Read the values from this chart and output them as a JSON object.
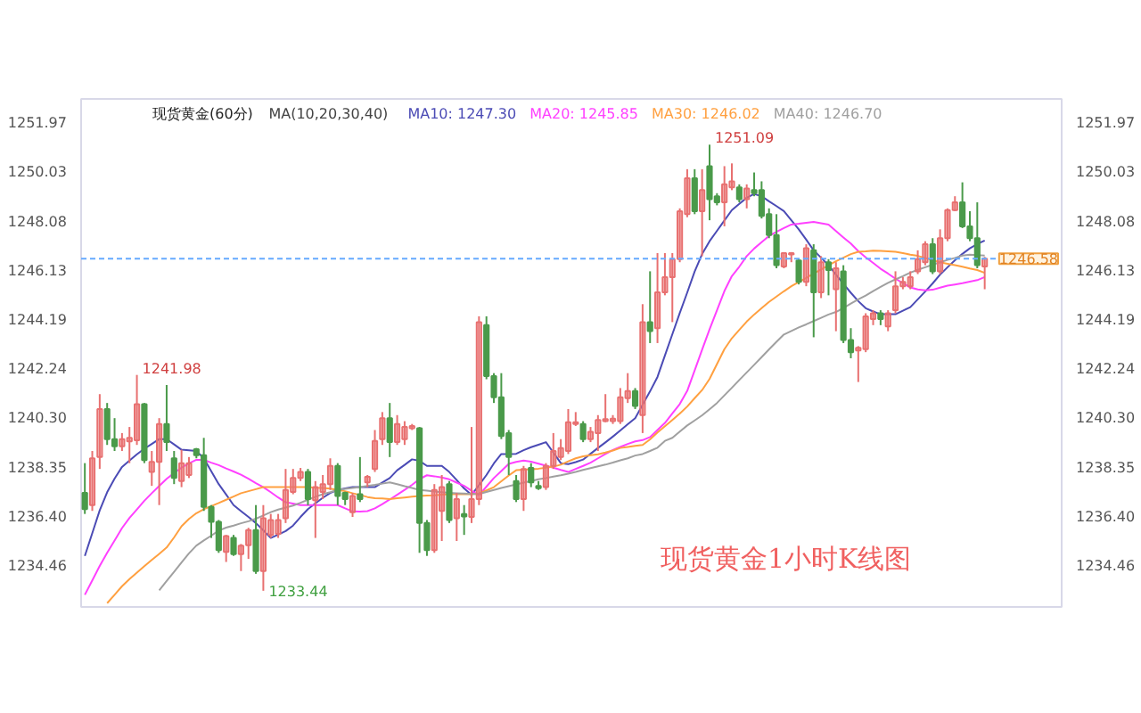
{
  "chart_data": {
    "type": "candlestick",
    "title": "现货黄金(60分)",
    "subtitle": "MA(10,20,30,40)",
    "categories": [
      null,
      null,
      null,
      null,
      null,
      null,
      null,
      null,
      null,
      null,
      null,
      null,
      null,
      null,
      null,
      null,
      null,
      null,
      null,
      null,
      null,
      null,
      null,
      null,
      null,
      null,
      null,
      null,
      null,
      null,
      null,
      null,
      null,
      null,
      null,
      null,
      null,
      null,
      null,
      null,
      null,
      null,
      null,
      null,
      null,
      null,
      null,
      null,
      null,
      null,
      null,
      null,
      null,
      null,
      null,
      null,
      null,
      null,
      null,
      null,
      null,
      null,
      null,
      null,
      null,
      null,
      null,
      null,
      null,
      null,
      null,
      null,
      null,
      null,
      null,
      null,
      null,
      null,
      null,
      null,
      null,
      null,
      null,
      null,
      null,
      null,
      null,
      null,
      null,
      null,
      null,
      null,
      null,
      null,
      null,
      null,
      null,
      null,
      null,
      null,
      null,
      null,
      null,
      null,
      null,
      null,
      null,
      null,
      null,
      null,
      null,
      null,
      null,
      null,
      null,
      null,
      null,
      null,
      null,
      null,
      null,
      null
    ],
    "ohlc": [
      [
        1237.31,
        1238.49,
        1236.48,
        1236.67
      ],
      [
        1236.83,
        1238.97,
        1236.6,
        1238.68
      ],
      [
        1238.73,
        1241.22,
        1238.26,
        1240.63
      ],
      [
        1240.63,
        1240.87,
        1239.21,
        1239.44
      ],
      [
        1239.44,
        1240.27,
        1238.97,
        1239.16
      ],
      [
        1239.16,
        1239.68,
        1238.97,
        1239.44
      ],
      [
        1239.35,
        1239.92,
        1238.49,
        1239.49
      ],
      [
        1239.39,
        1241.98,
        1239.21,
        1240.82
      ],
      [
        1240.82,
        1240.87,
        1238.49,
        1238.61
      ],
      [
        1238.14,
        1238.97,
        1237.59,
        1238.54
      ],
      [
        1238.54,
        1240.27,
        1236.83,
        1240.04
      ],
      [
        1240.04,
        1241.58,
        1238.97,
        1239.32
      ],
      [
        1238.68,
        1238.97,
        1237.66,
        1237.9
      ],
      [
        1237.78,
        1239.02,
        1237.54,
        1238.49
      ],
      [
        1238.02,
        1238.73,
        1237.9,
        1238.49
      ],
      [
        1239.04,
        1239.09,
        1238.68,
        1238.8
      ],
      [
        1238.8,
        1239.49,
        1236.6,
        1236.76
      ],
      [
        1236.76,
        1236.83,
        1235.53,
        1236.17
      ],
      [
        1236.17,
        1236.24,
        1234.94,
        1235.05
      ],
      [
        1234.98,
        1235.65,
        1234.58,
        1235.6
      ],
      [
        1235.53,
        1235.65,
        1234.82,
        1234.89
      ],
      [
        1234.89,
        1235.29,
        1234.22,
        1235.22
      ],
      [
        1235.24,
        1235.93,
        1234.7,
        1235.84
      ],
      [
        1235.84,
        1236.83,
        1234.11,
        1234.22
      ],
      [
        1234.22,
        1236.83,
        1233.44,
        1236.31
      ],
      [
        1235.65,
        1236.48,
        1235.53,
        1236.24
      ],
      [
        1235.69,
        1236.48,
        1235.53,
        1236.24
      ],
      [
        1236.31,
        1238.26,
        1236.12,
        1237.43
      ],
      [
        1237.35,
        1238.26,
        1237.26,
        1237.9
      ],
      [
        1237.9,
        1238.3,
        1237.78,
        1238.14
      ],
      [
        1238.14,
        1238.26,
        1236.83,
        1237.07
      ],
      [
        1237.02,
        1237.78,
        1235.53,
        1237.54
      ],
      [
        1237.35,
        1238.02,
        1237.07,
        1237.66
      ],
      [
        1237.66,
        1238.68,
        1237.43,
        1238.38
      ],
      [
        1238.38,
        1238.49,
        1236.83,
        1237.19
      ],
      [
        1237.31,
        1237.36,
        1236.83,
        1237.07
      ],
      [
        1236.55,
        1237.31,
        1236.36,
        1237.19
      ],
      [
        1237.26,
        1238.73,
        1236.95,
        1237.07
      ],
      [
        1237.73,
        1238.02,
        1237.54,
        1237.95
      ],
      [
        1238.26,
        1239.8,
        1238.14,
        1239.37
      ],
      [
        1239.44,
        1240.51,
        1239.21,
        1240.27
      ],
      [
        1240.27,
        1240.87,
        1238.73,
        1239.32
      ],
      [
        1239.32,
        1240.39,
        1239.21,
        1240.04
      ],
      [
        1239.44,
        1240.15,
        1239.21,
        1239.92
      ],
      [
        1239.87,
        1240.04,
        1239.8,
        1239.96
      ],
      [
        1239.87,
        1239.92,
        1234.94,
        1236.12
      ],
      [
        1236.12,
        1236.24,
        1234.82,
        1235.05
      ],
      [
        1235.05,
        1237.66,
        1234.94,
        1237.43
      ],
      [
        1236.6,
        1238.02,
        1235.41,
        1237.54
      ],
      [
        1237.66,
        1237.78,
        1236.12,
        1236.24
      ],
      [
        1236.31,
        1237.31,
        1235.41,
        1237.07
      ],
      [
        1236.48,
        1236.83,
        1235.65,
        1236.38
      ],
      [
        1236.36,
        1239.92,
        1236.12,
        1237.07
      ],
      [
        1237.07,
        1244.3,
        1236.83,
        1244.07
      ],
      [
        1243.95,
        1244.3,
        1241.81,
        1241.93
      ],
      [
        1241.93,
        1242.05,
        1240.87,
        1241.1
      ],
      [
        1241.1,
        1242.05,
        1239.44,
        1239.56
      ],
      [
        1239.68,
        1239.8,
        1238.02,
        1238.73
      ],
      [
        1237.78,
        1238.02,
        1236.95,
        1237.07
      ],
      [
        1237.07,
        1238.38,
        1236.6,
        1238.26
      ],
      [
        1238.3,
        1238.49,
        1237.54,
        1237.73
      ],
      [
        1237.59,
        1237.78,
        1237.43,
        1237.5
      ],
      [
        1237.54,
        1238.49,
        1237.43,
        1238.38
      ],
      [
        1238.38,
        1239.68,
        1238.26,
        1238.97
      ],
      [
        1238.73,
        1239.44,
        1238.61,
        1239.09
      ],
      [
        1238.97,
        1240.63,
        1238.85,
        1240.11
      ],
      [
        1240.04,
        1240.51,
        1239.96,
        1240.11
      ],
      [
        1240.04,
        1240.15,
        1239.32,
        1239.44
      ],
      [
        1239.44,
        1239.92,
        1239.32,
        1239.73
      ],
      [
        1239.68,
        1240.39,
        1238.97,
        1240.2
      ],
      [
        1240.15,
        1241.22,
        1240.11,
        1240.23
      ],
      [
        1240.15,
        1240.39,
        1240.04,
        1240.25
      ],
      [
        1240.15,
        1241.46,
        1240.04,
        1241.1
      ],
      [
        1241.06,
        1242.05,
        1240.87,
        1241.34
      ],
      [
        1241.34,
        1241.46,
        1240.63,
        1240.75
      ],
      [
        1240.39,
        1244.78,
        1239.68,
        1244.07
      ],
      [
        1244.07,
        1246.08,
        1243.24,
        1243.71
      ],
      [
        1243.83,
        1246.8,
        1243.24,
        1245.25
      ],
      [
        1245.25,
        1246.8,
        1245.13,
        1245.85
      ],
      [
        1245.85,
        1246.8,
        1244.07,
        1246.56
      ],
      [
        1246.56,
        1248.57,
        1246.44,
        1248.46
      ],
      [
        1248.34,
        1250.12,
        1248.22,
        1249.76
      ],
      [
        1249.76,
        1250.12,
        1248.34,
        1248.46
      ],
      [
        1248.46,
        1250.12,
        1246.68,
        1249.29
      ],
      [
        1250.24,
        1251.09,
        1248.1,
        1248.93
      ],
      [
        1249.05,
        1249.17,
        1248.69,
        1248.81
      ],
      [
        1248.81,
        1250.24,
        1247.86,
        1249.52
      ],
      [
        1249.4,
        1250.35,
        1249.29,
        1249.64
      ],
      [
        1249.4,
        1249.52,
        1248.81,
        1248.93
      ],
      [
        1248.93,
        1249.52,
        1248.57,
        1249.36
      ],
      [
        1249.29,
        1249.99,
        1249.05,
        1249.17
      ],
      [
        1249.29,
        1249.64,
        1248.17,
        1248.27
      ],
      [
        1248.34,
        1248.57,
        1247.39,
        1247.51
      ],
      [
        1247.51,
        1248.34,
        1246.2,
        1246.32
      ],
      [
        1246.27,
        1246.84,
        1246.2,
        1246.8
      ],
      [
        1246.75,
        1246.84,
        1246.44,
        1246.8
      ],
      [
        1246.51,
        1246.56,
        1245.56,
        1245.66
      ],
      [
        1245.66,
        1247.15,
        1245.49,
        1246.99
      ],
      [
        1246.91,
        1247.15,
        1243.47,
        1245.25
      ],
      [
        1245.25,
        1246.68,
        1245.02,
        1246.44
      ],
      [
        1246.44,
        1246.56,
        1245.13,
        1246.13
      ],
      [
        1245.37,
        1246.44,
        1243.71,
        1246.2
      ],
      [
        1246.08,
        1246.32,
        1243.24,
        1243.36
      ],
      [
        1243.36,
        1243.83,
        1242.64,
        1242.88
      ],
      [
        1242.95,
        1243.12,
        1241.7,
        1243.05
      ],
      [
        1243.0,
        1244.42,
        1242.88,
        1244.3
      ],
      [
        1244.19,
        1244.54,
        1243.95,
        1244.42
      ],
      [
        1244.42,
        1244.54,
        1243.95,
        1244.19
      ],
      [
        1243.9,
        1244.54,
        1243.71,
        1244.42
      ],
      [
        1244.54,
        1246.08,
        1244.42,
        1245.49
      ],
      [
        1245.49,
        1245.85,
        1245.37,
        1245.66
      ],
      [
        1245.49,
        1246.08,
        1245.37,
        1245.85
      ],
      [
        1246.08,
        1246.91,
        1245.97,
        1246.56
      ],
      [
        1246.44,
        1247.27,
        1246.32,
        1247.15
      ],
      [
        1247.15,
        1247.39,
        1245.97,
        1246.08
      ],
      [
        1246.08,
        1247.74,
        1245.97,
        1247.39
      ],
      [
        1247.39,
        1248.57,
        1247.27,
        1248.5
      ],
      [
        1248.5,
        1249.05,
        1248.46,
        1248.81
      ],
      [
        1248.81,
        1249.6,
        1247.79,
        1247.86
      ],
      [
        1247.86,
        1248.46,
        1247.27,
        1247.39
      ],
      [
        1247.39,
        1248.81,
        1246.2,
        1246.32
      ],
      [
        1246.27,
        1246.65,
        1245.37,
        1246.58
      ]
    ],
    "colors": [
      "#4a9a4a",
      "#e87070",
      "#e87070",
      "#4a9a4a",
      "#4a9a4a",
      "#e87070",
      "#e87070",
      "#e87070",
      "#4a9a4a",
      "#e87070",
      "#e87070",
      "#4a9a4a",
      "#4a9a4a",
      "#e87070",
      "#e87070",
      "#4a9a4a",
      "#4a9a4a",
      "#4a9a4a",
      "#4a9a4a",
      "#e87070",
      "#4a9a4a",
      "#e87070",
      "#e87070",
      "#4a9a4a",
      "#e87070",
      "#e87070",
      "#e87070",
      "#e87070",
      "#e87070",
      "#e87070",
      "#4a9a4a",
      "#e87070",
      "#e87070",
      "#e87070",
      "#4a9a4a",
      "#4a9a4a",
      "#e87070",
      "#4a9a4a",
      "#e87070",
      "#e87070",
      "#e87070",
      "#4a9a4a",
      "#e87070",
      "#e87070",
      "#e87070",
      "#4a9a4a",
      "#4a9a4a",
      "#e87070",
      "#e87070",
      "#4a9a4a",
      "#e87070",
      "#4a9a4a",
      "#e87070",
      "#e87070",
      "#4a9a4a",
      "#4a9a4a",
      "#4a9a4a",
      "#4a9a4a",
      "#4a9a4a",
      "#e87070",
      "#4a9a4a",
      "#4a9a4a",
      "#e87070",
      "#e87070",
      "#e87070",
      "#e87070",
      "#e87070",
      "#4a9a4a",
      "#e87070",
      "#e87070",
      "#e87070",
      "#e87070",
      "#e87070",
      "#e87070",
      "#4a9a4a",
      "#e87070",
      "#4a9a4a",
      "#e87070",
      "#e87070",
      "#e87070",
      "#e87070",
      "#e87070",
      "#4a9a4a",
      "#e87070",
      "#4a9a4a",
      "#4a9a4a",
      "#e87070",
      "#e87070",
      "#4a9a4a",
      "#e87070",
      "#4a9a4a",
      "#4a9a4a",
      "#4a9a4a",
      "#4a9a4a",
      "#e87070",
      "#e87070",
      "#4a9a4a",
      "#e87070",
      "#4a9a4a",
      "#e87070",
      "#4a9a4a",
      "#e87070",
      "#4a9a4a",
      "#4a9a4a",
      "#e87070",
      "#e87070",
      "#e87070",
      "#4a9a4a",
      "#e87070",
      "#e87070",
      "#e87070",
      "#e87070",
      "#e87070",
      "#e87070",
      "#4a9a4a",
      "#e87070",
      "#e87070",
      "#e87070",
      "#4a9a4a",
      "#4a9a4a",
      "#4a9a4a",
      "#e87070"
    ],
    "series": [
      {
        "type": "line",
        "name": "MA10: 1247.30",
        "color": "#4b4bb5",
        "values": [
          1234.82,
          1235.72,
          1236.62,
          1237.34,
          1237.88,
          1238.34,
          1238.59,
          1238.84,
          1239.06,
          1239.25,
          1239.44,
          1239.44,
          1239.23,
          1239.02,
          1239.0,
          1238.97,
          1238.68,
          1238.17,
          1237.66,
          1237.25,
          1236.83,
          1236.59,
          1236.36,
          1236.12,
          1235.83,
          1235.53,
          1235.66,
          1235.8,
          1236.02,
          1236.36,
          1236.67,
          1236.9,
          1237.12,
          1237.31,
          1237.43,
          1237.49,
          1237.54,
          1237.54,
          1237.54,
          1237.54,
          1237.72,
          1237.9,
          1238.21,
          1238.42,
          1238.64,
          1238.58,
          1238.38,
          1238.38,
          1238.38,
          1238.14,
          1237.82,
          1237.49,
          1237.23,
          1237.62,
          1238.02,
          1238.48,
          1238.85,
          1238.85,
          1238.86,
          1239.0,
          1239.12,
          1239.22,
          1239.32,
          1238.91,
          1238.49,
          1238.45,
          1238.53,
          1238.63,
          1238.86,
          1239.09,
          1239.31,
          1239.54,
          1239.78,
          1240.03,
          1240.27,
          1240.8,
          1241.33,
          1241.9,
          1242.75,
          1243.59,
          1244.43,
          1245.24,
          1246.07,
          1246.76,
          1247.27,
          1247.68,
          1248.09,
          1248.5,
          1248.75,
          1248.99,
          1249.14,
          1249.05,
          1248.85,
          1248.66,
          1248.46,
          1248.1,
          1247.74,
          1247.33,
          1246.91,
          1246.62,
          1246.32,
          1245.95,
          1245.59,
          1245.23,
          1244.9,
          1244.62,
          1244.49,
          1244.38,
          1244.38,
          1244.38,
          1244.52,
          1244.66,
          1244.97,
          1245.28,
          1245.6,
          1245.95,
          1246.24,
          1246.52,
          1246.77,
          1246.99,
          1247.16,
          1247.3
        ]
      },
      {
        "type": "line",
        "name": "MA20: 1245.85",
        "color": "#ff40ff",
        "values": [
          1233.28,
          1233.85,
          1234.42,
          1234.94,
          1235.43,
          1235.92,
          1236.32,
          1236.66,
          1237.0,
          1237.3,
          1237.59,
          1237.87,
          1238.1,
          1238.31,
          1238.48,
          1238.62,
          1238.62,
          1238.51,
          1238.41,
          1238.28,
          1238.16,
          1238.03,
          1237.87,
          1237.7,
          1237.54,
          1237.34,
          1237.13,
          1236.94,
          1236.89,
          1236.83,
          1236.83,
          1236.83,
          1236.83,
          1236.83,
          1236.83,
          1236.7,
          1236.58,
          1236.57,
          1236.59,
          1236.7,
          1236.87,
          1237.05,
          1237.24,
          1237.43,
          1237.63,
          1237.86,
          1238.01,
          1237.97,
          1237.92,
          1237.85,
          1237.72,
          1237.59,
          1237.4,
          1237.22,
          1237.56,
          1237.9,
          1238.18,
          1238.46,
          1238.54,
          1238.59,
          1238.55,
          1238.47,
          1238.39,
          1238.31,
          1238.22,
          1238.14,
          1238.26,
          1238.38,
          1238.51,
          1238.68,
          1238.85,
          1239.01,
          1239.13,
          1239.25,
          1239.35,
          1239.4,
          1239.52,
          1239.8,
          1240.08,
          1240.46,
          1240.83,
          1241.35,
          1242.16,
          1242.98,
          1243.78,
          1244.54,
          1245.3,
          1245.89,
          1246.26,
          1246.68,
          1246.98,
          1247.23,
          1247.48,
          1247.64,
          1247.79,
          1247.93,
          1247.96,
          1248.0,
          1248.03,
          1247.98,
          1247.93,
          1247.67,
          1247.42,
          1247.18,
          1246.88,
          1246.63,
          1246.41,
          1246.18,
          1245.99,
          1245.79,
          1245.61,
          1245.44,
          1245.36,
          1245.33,
          1245.35,
          1245.43,
          1245.51,
          1245.56,
          1245.61,
          1245.67,
          1245.73,
          1245.85
        ]
      },
      {
        "type": "line",
        "name": "MA30: 1246.02",
        "color": "#ffa040",
        "values": [
          null,
          null,
          null,
          1232.95,
          1233.28,
          1233.62,
          1233.9,
          1234.16,
          1234.41,
          1234.66,
          1234.9,
          1235.15,
          1235.55,
          1235.99,
          1236.28,
          1236.51,
          1236.67,
          1236.79,
          1236.91,
          1237.04,
          1237.17,
          1237.3,
          1237.38,
          1237.46,
          1237.54,
          1237.54,
          1237.54,
          1237.54,
          1237.54,
          1237.54,
          1237.54,
          1237.52,
          1237.51,
          1237.48,
          1237.43,
          1237.38,
          1237.3,
          1237.23,
          1237.15,
          1237.1,
          1237.09,
          1237.07,
          1237.1,
          1237.13,
          1237.16,
          1237.19,
          1237.21,
          1237.22,
          1237.24,
          1237.26,
          1237.26,
          1237.26,
          1237.26,
          1237.28,
          1237.41,
          1237.54,
          1237.77,
          1238.0,
          1238.21,
          1238.23,
          1238.25,
          1238.27,
          1238.31,
          1238.35,
          1238.43,
          1238.56,
          1238.68,
          1238.76,
          1238.8,
          1238.84,
          1238.91,
          1238.99,
          1239.09,
          1239.13,
          1239.17,
          1239.21,
          1239.43,
          1239.7,
          1239.95,
          1240.2,
          1240.45,
          1240.73,
          1241.06,
          1241.38,
          1241.82,
          1242.41,
          1243.0,
          1243.43,
          1243.76,
          1244.09,
          1244.37,
          1244.62,
          1244.87,
          1245.08,
          1245.29,
          1245.49,
          1245.66,
          1245.82,
          1245.99,
          1246.15,
          1246.32,
          1246.48,
          1246.62,
          1246.76,
          1246.85,
          1246.87,
          1246.9,
          1246.89,
          1246.87,
          1246.85,
          1246.8,
          1246.74,
          1246.69,
          1246.61,
          1246.52,
          1246.44,
          1246.38,
          1246.32,
          1246.26,
          1246.19,
          1246.13,
          1246.02
        ]
      },
      {
        "type": "line",
        "name": "MA40: 1246.70",
        "color": "#a0a0a0",
        "values": [
          null,
          null,
          null,
          null,
          null,
          null,
          null,
          null,
          null,
          null,
          1233.46,
          1233.83,
          1234.19,
          1234.56,
          1234.92,
          1235.23,
          1235.43,
          1235.62,
          1235.82,
          1235.94,
          1236.02,
          1236.11,
          1236.19,
          1236.29,
          1236.42,
          1236.55,
          1236.65,
          1236.73,
          1236.81,
          1236.92,
          1237.04,
          1237.16,
          1237.26,
          1237.34,
          1237.43,
          1237.47,
          1237.51,
          1237.54,
          1237.59,
          1237.63,
          1237.68,
          1237.73,
          1237.66,
          1237.58,
          1237.51,
          1237.43,
          1237.4,
          1237.37,
          1237.34,
          1237.31,
          1237.3,
          1237.29,
          1237.27,
          1237.27,
          1237.35,
          1237.43,
          1237.51,
          1237.58,
          1237.65,
          1237.72,
          1237.78,
          1237.85,
          1237.9,
          1237.96,
          1238.01,
          1238.07,
          1238.14,
          1238.22,
          1238.29,
          1238.36,
          1238.43,
          1238.51,
          1238.6,
          1238.68,
          1238.79,
          1238.85,
          1238.97,
          1239.1,
          1239.37,
          1239.49,
          1239.74,
          1239.98,
          1240.18,
          1240.38,
          1240.62,
          1240.87,
          1241.17,
          1241.47,
          1241.78,
          1242.08,
          1242.38,
          1242.68,
          1242.99,
          1243.29,
          1243.58,
          1243.72,
          1243.86,
          1243.98,
          1244.11,
          1244.24,
          1244.37,
          1244.47,
          1244.63,
          1244.8,
          1244.97,
          1245.12,
          1245.3,
          1245.46,
          1245.62,
          1245.76,
          1245.89,
          1246.03,
          1246.14,
          1246.24,
          1246.34,
          1246.44,
          1246.53,
          1246.61,
          1246.7,
          1246.74,
          1246.72,
          1246.7
        ]
      }
    ],
    "ylim": [
      1232.8,
      1252.9
    ],
    "yticks": [
      {
        "value": 1251.97,
        "label": "1251.97"
      },
      {
        "value": 1250.03,
        "label": "1250.03"
      },
      {
        "value": 1248.08,
        "label": "1248.08"
      },
      {
        "value": 1246.13,
        "label": "1246.13"
      },
      {
        "value": 1244.19,
        "label": "1244.19"
      },
      {
        "value": 1242.24,
        "label": "1242.24"
      },
      {
        "value": 1240.3,
        "label": "1240.30"
      },
      {
        "value": 1238.35,
        "label": "1238.35"
      },
      {
        "value": 1236.4,
        "label": "1236.40"
      },
      {
        "value": 1234.46,
        "label": "1234.46"
      }
    ],
    "y2lim": [
      1232.8,
      1252.9
    ],
    "y2ticks": [
      {
        "value": 1251.97,
        "label": "1251.97"
      },
      {
        "value": 1250.03,
        "label": "1250.03"
      },
      {
        "value": 1248.08,
        "label": "1248.08"
      },
      {
        "value": 1246.13,
        "label": "1246.13"
      },
      {
        "value": 1244.19,
        "label": "1244.19"
      },
      {
        "value": 1242.24,
        "label": "1242.24"
      },
      {
        "value": 1240.3,
        "label": "1240.30"
      },
      {
        "value": 1238.35,
        "label": "1238.35"
      },
      {
        "value": 1236.4,
        "label": "1236.40"
      },
      {
        "value": 1234.46,
        "label": "1234.46"
      }
    ],
    "ref_lines": [
      {
        "axis": "y",
        "value": 1246.58,
        "label": "1246.58",
        "color": "#66aaff",
        "line_style": "dashed"
      }
    ],
    "annotations": [
      "1241.98",
      "1251.09",
      "1233.44",
      "现货黄金1小时K线图"
    ],
    "legend": "top",
    "grid": false
  }
}
